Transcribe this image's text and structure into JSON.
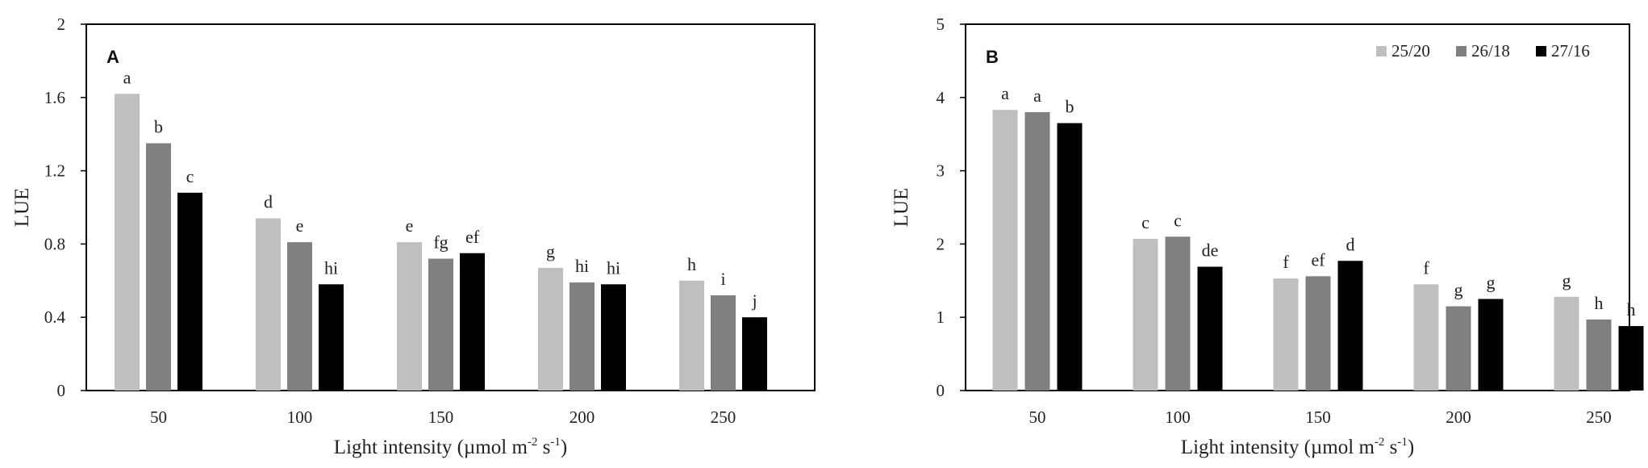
{
  "colors": {
    "series": [
      "#bfbfbf",
      "#808080",
      "#000000"
    ],
    "frame": "#000000"
  },
  "chart_data": [
    {
      "type": "bar",
      "panel_label": "A",
      "categories": [
        "50",
        "100",
        "150",
        "200",
        "250"
      ],
      "series": [
        {
          "name": "25/20",
          "values": [
            1.62,
            0.94,
            0.81,
            0.67,
            0.6
          ],
          "letters": [
            "a",
            "d",
            "e",
            "g",
            "h"
          ]
        },
        {
          "name": "26/18",
          "values": [
            1.35,
            0.81,
            0.72,
            0.59,
            0.52
          ],
          "letters": [
            "b",
            "e",
            "fg",
            "hi",
            "i"
          ]
        },
        {
          "name": "27/16",
          "values": [
            1.08,
            0.58,
            0.75,
            0.58,
            0.4
          ],
          "letters": [
            "c",
            "hi",
            "ef",
            "hi",
            "j"
          ]
        }
      ],
      "ylim": [
        0,
        2
      ],
      "yticks": [
        "0",
        "0.4",
        "0.8",
        "1.2",
        "1.6",
        "2"
      ],
      "ylabel": "LUE",
      "xlabel": {
        "prefix": "Light intensity  (µmol m",
        "sup1": "-2",
        "mid": " s",
        "sup2": "-1",
        "suffix": ")"
      },
      "legend": false,
      "grid": false
    },
    {
      "type": "bar",
      "panel_label": "B",
      "categories": [
        "50",
        "100",
        "150",
        "200",
        "250"
      ],
      "series": [
        {
          "name": "25/20",
          "values": [
            3.83,
            2.07,
            1.53,
            1.45,
            1.28
          ],
          "letters": [
            "a",
            "c",
            "f",
            "f",
            "g"
          ]
        },
        {
          "name": "26/18",
          "values": [
            3.8,
            2.1,
            1.56,
            1.15,
            0.97
          ],
          "letters": [
            "a",
            "c",
            "ef",
            "g",
            "h"
          ]
        },
        {
          "name": "27/16",
          "values": [
            3.65,
            1.69,
            1.77,
            1.25,
            0.88
          ],
          "letters": [
            "b",
            "de",
            "d",
            "g",
            "h"
          ]
        }
      ],
      "ylim": [
        0,
        5
      ],
      "yticks": [
        "0",
        "1",
        "2",
        "3",
        "4",
        "5"
      ],
      "ylabel": "LUE",
      "xlabel": {
        "prefix": "Light intensity  (µmol m",
        "sup1": "-2",
        "mid": " s",
        "sup2": "-1",
        "suffix": ")"
      },
      "legend": true,
      "legend_position": "top-right",
      "grid": false
    }
  ]
}
